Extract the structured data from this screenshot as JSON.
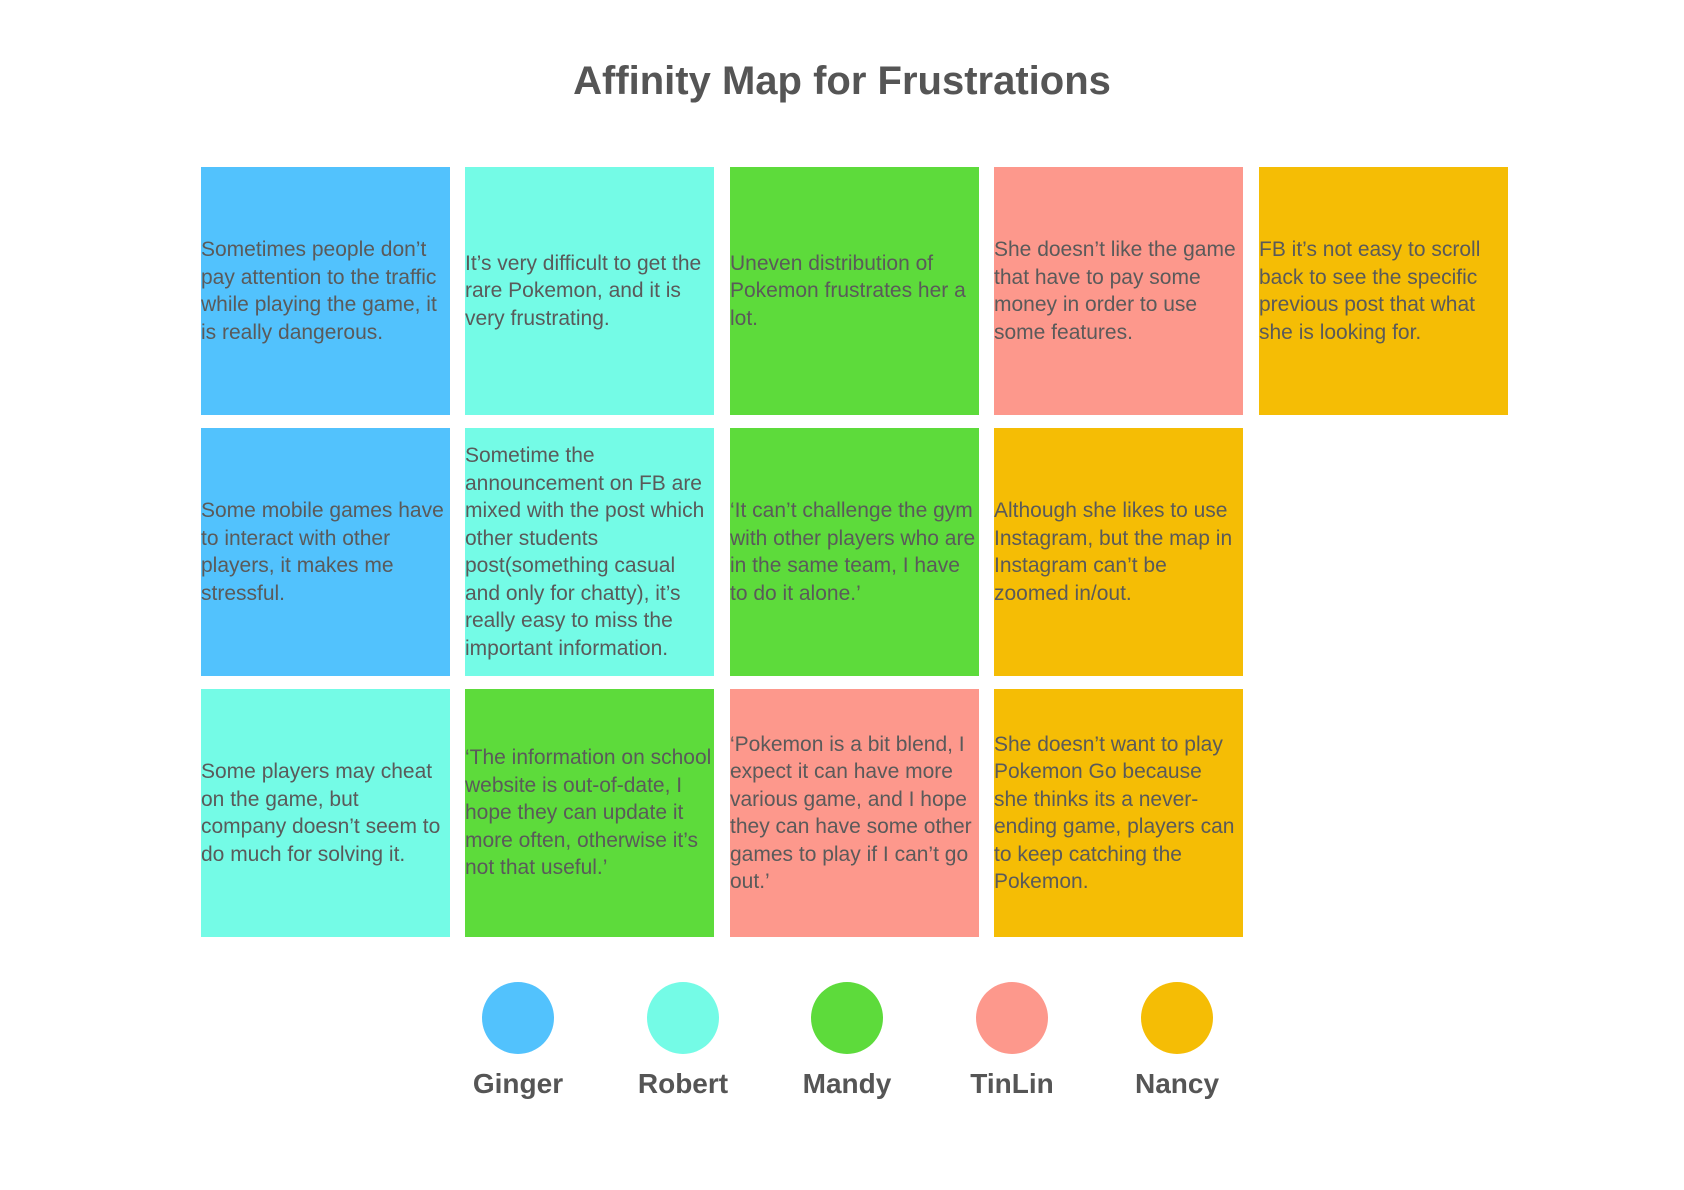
{
  "title": "Affinity Map for Frustrations",
  "colors": {
    "ginger": "#52c2fd",
    "robert": "#74fbe6",
    "mandy": "#5ddb3b",
    "tinlin": "#fd988c",
    "nancy": "#f5bd05"
  },
  "notes": [
    {
      "person": "Ginger",
      "text": "Sometimes people don’t pay attention to the traffic while playing the game, it is really dangerous."
    },
    {
      "person": "Robert",
      "text": "It’s very difficult to get the rare Pokemon, and it is very frustrating."
    },
    {
      "person": "Mandy",
      "text": "Uneven distribution of Pokemon frustrates her a lot."
    },
    {
      "person": "TinLin",
      "text": "She doesn’t like the game that have to pay some money in order to use some features."
    },
    {
      "person": "Nancy",
      "text": "FB it’s not easy to scroll back to see the specific previous post that what she is looking for."
    },
    {
      "person": "Ginger",
      "text": "Some mobile games have to interact with other players, it makes me stressful."
    },
    {
      "person": "Robert",
      "text": "Sometime the announcement on FB are mixed with the post which other students post(something casual and only for chatty), it’s really easy to miss the important information."
    },
    {
      "person": "Mandy",
      "text": "‘It can’t challenge the gym with other players who are in the same team, I have to do it alone.’"
    },
    {
      "person": "Nancy",
      "text": "Although she likes to use Instagram, but the map in Instagram can’t be zoomed in/out."
    },
    {
      "person": "Robert",
      "text": "Some players may cheat on the game, but company doesn’t seem to do much for solving it."
    },
    {
      "person": "Mandy",
      "text": "‘The information on school website is out-of-date, I hope they can update it more often, otherwise it’s not that useful.’"
    },
    {
      "person": "TinLin",
      "text": "‘Pokemon is a bit blend, I expect it can have more various game, and I hope they can have some other games to play if I can’t go out.’"
    },
    {
      "person": "Nancy",
      "text": "She doesn’t want to play Pokemon Go because she thinks its a never-ending game, players can to keep catching the Pokemon."
    }
  ],
  "legend": [
    {
      "name": "Ginger"
    },
    {
      "name": "Robert"
    },
    {
      "name": "Mandy"
    },
    {
      "name": "TinLin"
    },
    {
      "name": "Nancy"
    }
  ]
}
